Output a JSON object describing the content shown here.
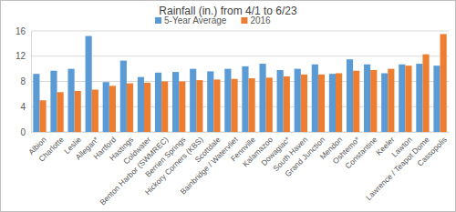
{
  "chart_data": {
    "type": "bar",
    "title": "Rainfall (in.) from 4/1 to 6/23",
    "categories": [
      "Albion",
      "Charlotte",
      "Leslie",
      "Allegan*",
      "Hartford",
      "Hastings",
      "Coldwater",
      "Benton Harbor (SWMREC)",
      "Berrien Springs",
      "Hickory Corners (KBS)",
      "Scottdale",
      "Bainbridge / Watervliet",
      "Fennville",
      "Kalamazoo",
      "Dowagiac*",
      "South Haven",
      "Grand Junction",
      "Mendon",
      "Oshtemo*",
      "Constantine",
      "Keeler",
      "Lawton",
      "Lawrence / Teapot Dome",
      "Cassopolis"
    ],
    "series": [
      {
        "name": "5-Year Average",
        "color": "#5b9bd5",
        "values": [
          9.2,
          9.7,
          10.0,
          15.2,
          7.9,
          11.3,
          8.7,
          9.4,
          9.5,
          10.0,
          9.6,
          10.0,
          10.4,
          10.8,
          9.8,
          10.0,
          10.7,
          9.2,
          11.5,
          10.7,
          9.3,
          10.7,
          10.8,
          10.5
        ]
      },
      {
        "name": "2016",
        "color": "#ed7d31",
        "values": [
          5.0,
          6.3,
          6.5,
          6.7,
          7.3,
          7.7,
          7.8,
          8.0,
          8.0,
          8.2,
          8.3,
          8.4,
          8.5,
          8.6,
          8.8,
          9.1,
          9.1,
          9.3,
          9.7,
          9.8,
          10.0,
          10.5,
          12.3,
          15.5
        ]
      }
    ],
    "ylim": [
      0,
      16
    ],
    "yticks": [
      0,
      4,
      8,
      12,
      16
    ],
    "grid": true,
    "legend": "top"
  }
}
